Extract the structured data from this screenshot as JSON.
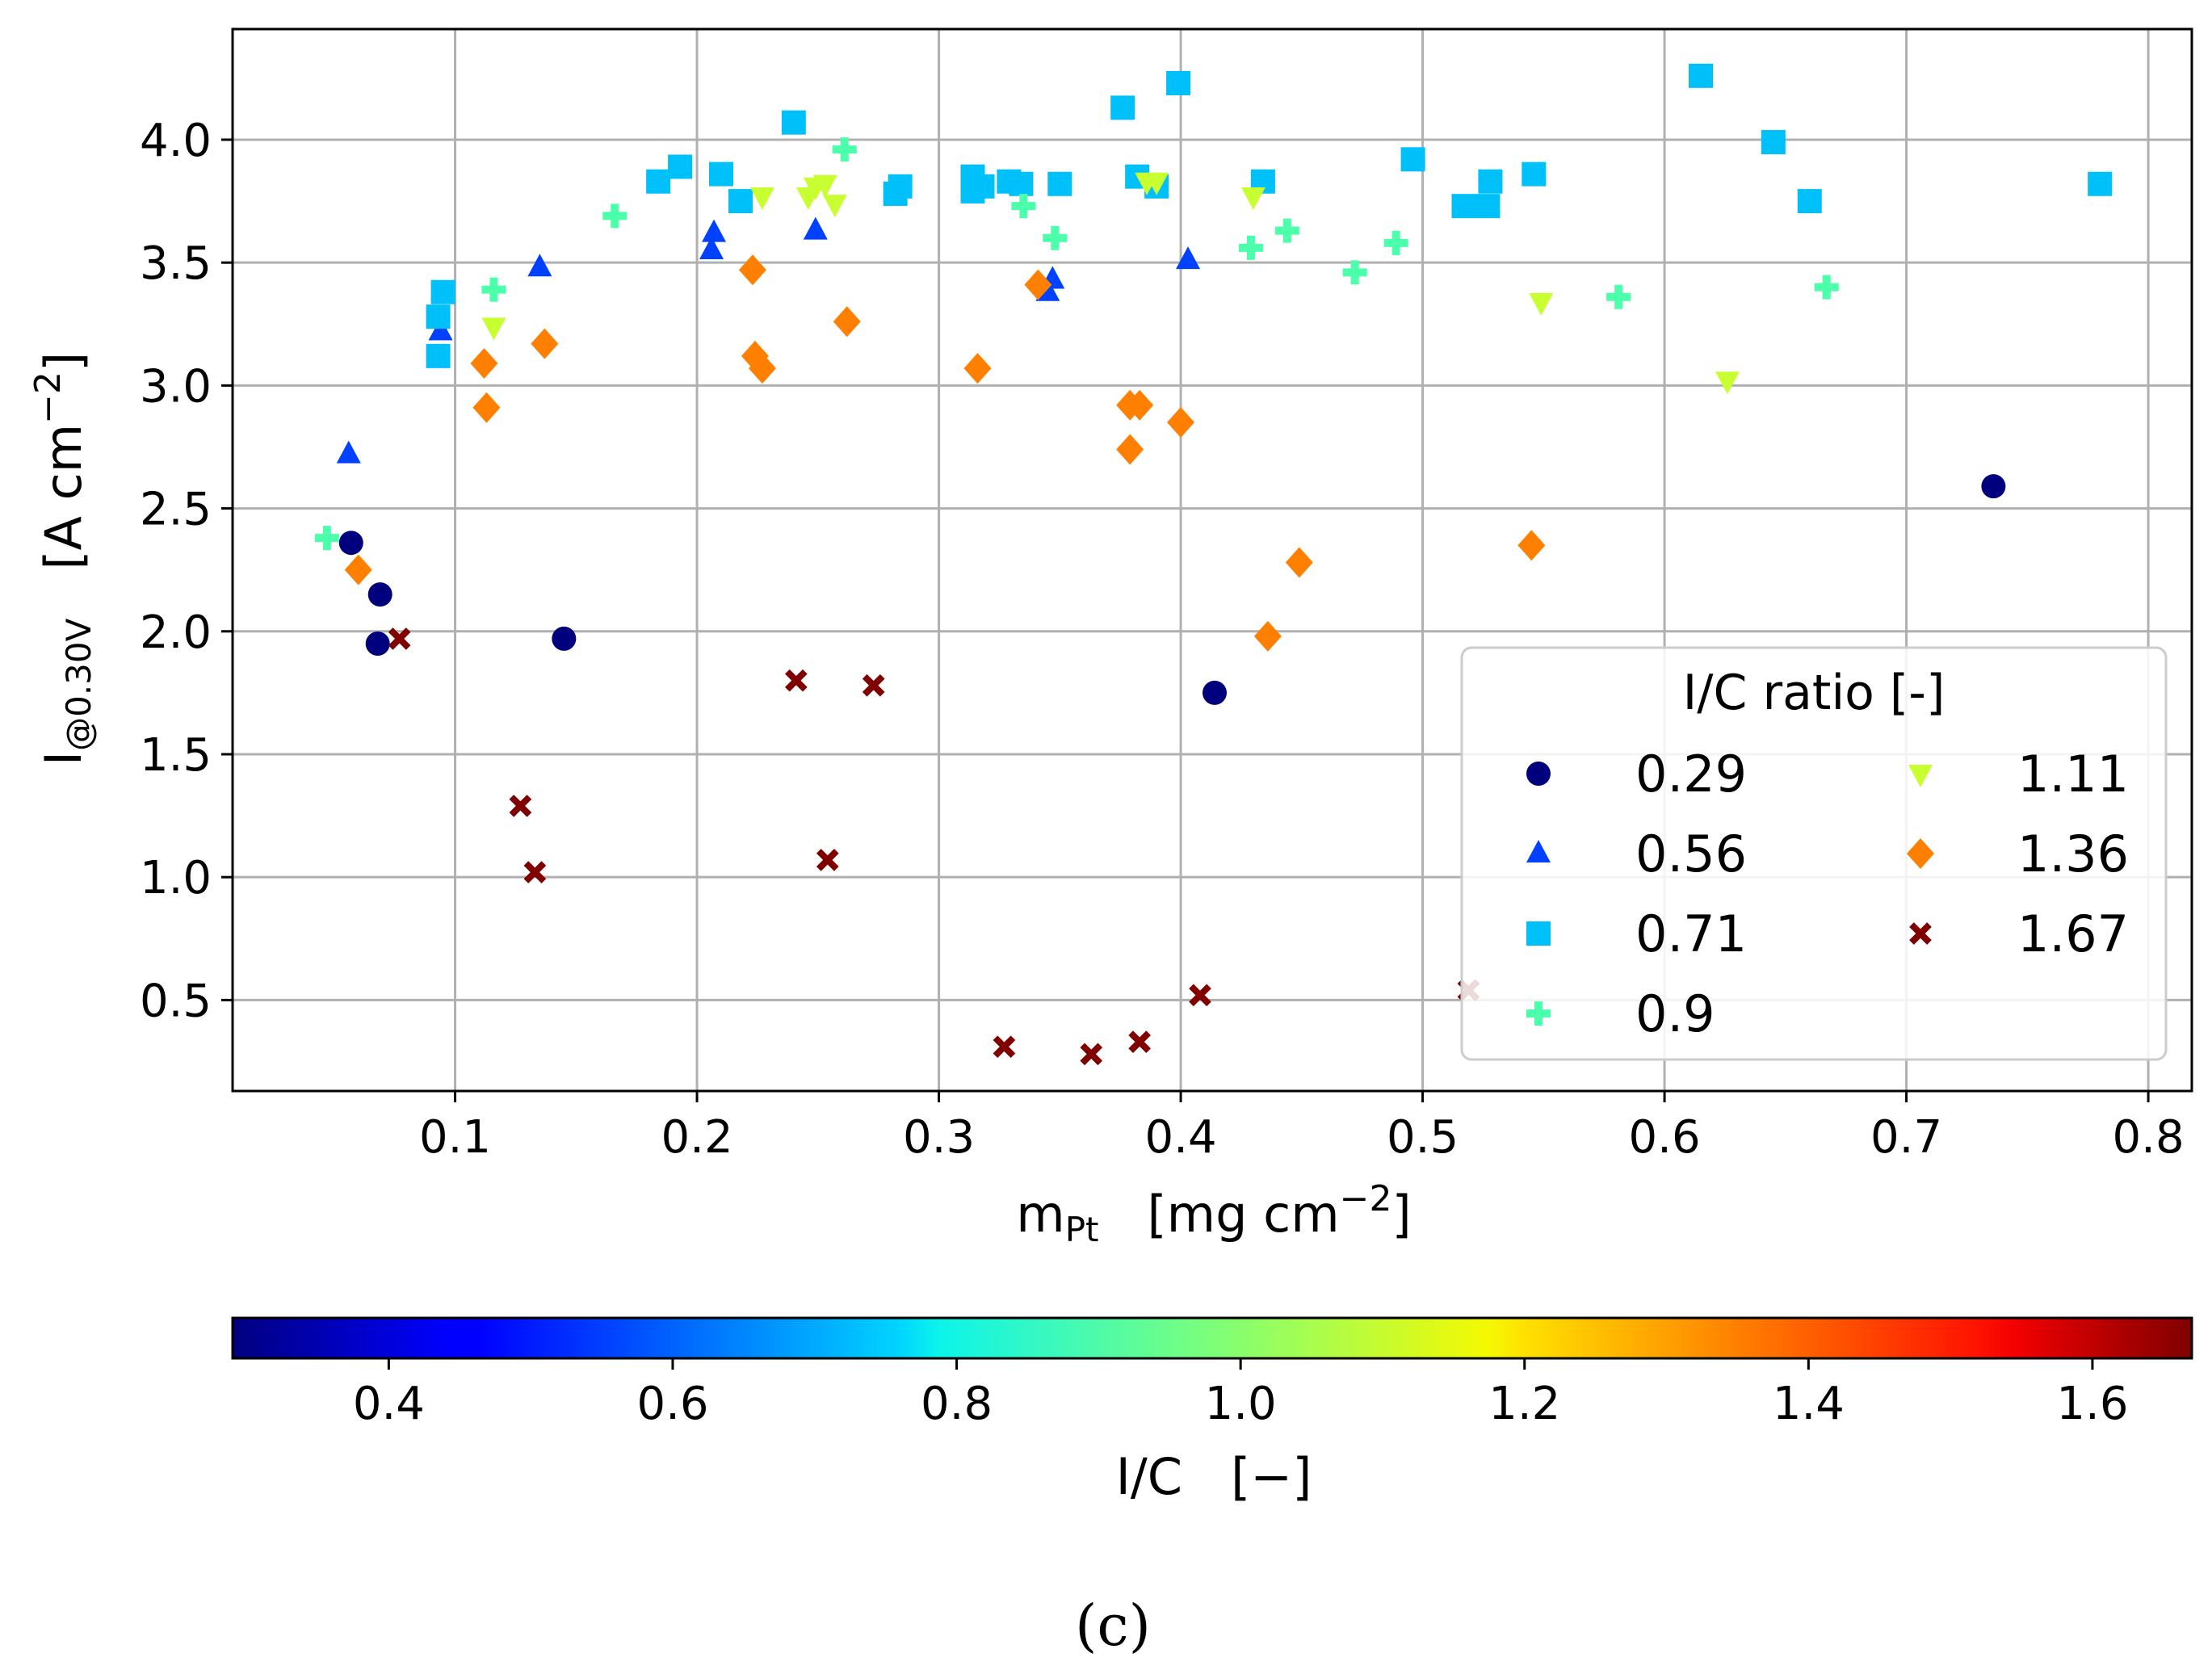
{
  "chart_data": {
    "type": "scatter",
    "xlabel": "m",
    "xlabel_sub": "Pt",
    "xlabel_unit": "[mg cm",
    "xlabel_unit_exp": "−2",
    "xlabel_unit_end": "]",
    "ylabel": "I",
    "ylabel_sub": "@0.30V",
    "ylabel_unit": "[A cm",
    "ylabel_unit_exp": "−2",
    "ylabel_unit_end": "]",
    "xlim": [
      0.008,
      0.818
    ],
    "ylim": [
      0.13,
      4.45
    ],
    "xticks": [
      0.1,
      0.2,
      0.3,
      0.4,
      0.5,
      0.6,
      0.7,
      0.8
    ],
    "xtick_labels": [
      "0.1",
      "0.2",
      "0.3",
      "0.4",
      "0.5",
      "0.6",
      "0.7",
      "0.8"
    ],
    "yticks": [
      0.5,
      1.0,
      1.5,
      2.0,
      2.5,
      3.0,
      3.5,
      4.0
    ],
    "ytick_labels": [
      "0.5",
      "1.0",
      "1.5",
      "2.0",
      "2.5",
      "3.0",
      "3.5",
      "4.0"
    ],
    "grid": true,
    "legend": {
      "title": "I/C ratio [-]",
      "placement": "lower-right"
    },
    "series": [
      {
        "name": "0.29",
        "marker": "circle",
        "color": "#00007f",
        "points": [
          [
            0.057,
            2.36
          ],
          [
            0.069,
            2.15
          ],
          [
            0.068,
            1.95
          ],
          [
            0.145,
            1.97
          ],
          [
            0.414,
            1.75
          ],
          [
            0.736,
            2.59
          ]
        ]
      },
      {
        "name": "0.56",
        "marker": "triangle-up",
        "color": "#0040ff",
        "points": [
          [
            0.056,
            2.72
          ],
          [
            0.094,
            3.22
          ],
          [
            0.135,
            3.48
          ],
          [
            0.206,
            3.55
          ],
          [
            0.207,
            3.62
          ],
          [
            0.249,
            3.63
          ],
          [
            0.345,
            3.38
          ],
          [
            0.347,
            3.43
          ],
          [
            0.403,
            3.51
          ]
        ]
      },
      {
        "name": "0.71",
        "marker": "square",
        "color": "#00c0fa",
        "points": [
          [
            0.093,
            3.12
          ],
          [
            0.093,
            3.28
          ],
          [
            0.095,
            3.38
          ],
          [
            0.184,
            3.83
          ],
          [
            0.193,
            3.89
          ],
          [
            0.21,
            3.86
          ],
          [
            0.218,
            3.75
          ],
          [
            0.24,
            4.07
          ],
          [
            0.282,
            3.78
          ],
          [
            0.284,
            3.81
          ],
          [
            0.314,
            3.79
          ],
          [
            0.314,
            3.85
          ],
          [
            0.318,
            3.81
          ],
          [
            0.329,
            3.83
          ],
          [
            0.334,
            3.82
          ],
          [
            0.35,
            3.82
          ],
          [
            0.376,
            4.13
          ],
          [
            0.382,
            3.85
          ],
          [
            0.39,
            3.81
          ],
          [
            0.399,
            4.23
          ],
          [
            0.434,
            3.83
          ],
          [
            0.496,
            3.92
          ],
          [
            0.517,
            3.73
          ],
          [
            0.527,
            3.73
          ],
          [
            0.528,
            3.83
          ],
          [
            0.546,
            3.86
          ],
          [
            0.615,
            4.26
          ],
          [
            0.645,
            3.99
          ],
          [
            0.66,
            3.75
          ],
          [
            0.78,
            3.82
          ]
        ]
      },
      {
        "name": "0.9",
        "marker": "plus",
        "color": "#4cffaa",
        "points": [
          [
            0.047,
            2.38
          ],
          [
            0.116,
            3.39
          ],
          [
            0.166,
            3.69
          ],
          [
            0.261,
            3.96
          ],
          [
            0.335,
            3.73
          ],
          [
            0.348,
            3.6
          ],
          [
            0.429,
            3.56
          ],
          [
            0.444,
            3.63
          ],
          [
            0.472,
            3.46
          ],
          [
            0.489,
            3.58
          ],
          [
            0.581,
            3.36
          ],
          [
            0.667,
            3.4
          ]
        ]
      },
      {
        "name": "1.11",
        "marker": "triangle-down",
        "color": "#c8ff30",
        "points": [
          [
            0.116,
            3.24
          ],
          [
            0.227,
            3.77
          ],
          [
            0.246,
            3.77
          ],
          [
            0.249,
            3.81
          ],
          [
            0.253,
            3.82
          ],
          [
            0.257,
            3.74
          ],
          [
            0.386,
            3.83
          ],
          [
            0.39,
            3.83
          ],
          [
            0.43,
            3.77
          ],
          [
            0.549,
            3.34
          ],
          [
            0.626,
            3.02
          ]
        ]
      },
      {
        "name": "1.36",
        "marker": "diamond",
        "color": "#ff8000",
        "points": [
          [
            0.06,
            2.25
          ],
          [
            0.112,
            3.09
          ],
          [
            0.113,
            2.91
          ],
          [
            0.137,
            3.17
          ],
          [
            0.223,
            3.47
          ],
          [
            0.224,
            3.12
          ],
          [
            0.227,
            3.07
          ],
          [
            0.262,
            3.26
          ],
          [
            0.316,
            3.07
          ],
          [
            0.341,
            3.41
          ],
          [
            0.379,
            2.92
          ],
          [
            0.379,
            2.74
          ],
          [
            0.383,
            2.92
          ],
          [
            0.4,
            2.85
          ],
          [
            0.436,
            1.98
          ],
          [
            0.449,
            2.28
          ],
          [
            0.545,
            2.35
          ]
        ]
      },
      {
        "name": "1.67",
        "marker": "x",
        "color": "#800000",
        "points": [
          [
            0.077,
            1.97
          ],
          [
            0.127,
            1.29
          ],
          [
            0.133,
            1.02
          ],
          [
            0.241,
            1.8
          ],
          [
            0.254,
            1.07
          ],
          [
            0.273,
            1.78
          ],
          [
            0.327,
            0.31
          ],
          [
            0.363,
            0.28
          ],
          [
            0.383,
            0.33
          ],
          [
            0.408,
            0.52
          ],
          [
            0.519,
            0.54
          ]
        ]
      }
    ],
    "colorbar": {
      "label": "I/C",
      "label_unit": "[−]",
      "range": [
        0.29,
        1.67
      ],
      "colormap": "jet",
      "ticks": [
        0.4,
        0.6,
        0.8,
        1.0,
        1.2,
        1.4,
        1.6
      ],
      "tick_labels": [
        "0.4",
        "0.6",
        "0.8",
        "1.0",
        "1.2",
        "1.4",
        "1.6"
      ]
    }
  },
  "caption": "(c)"
}
